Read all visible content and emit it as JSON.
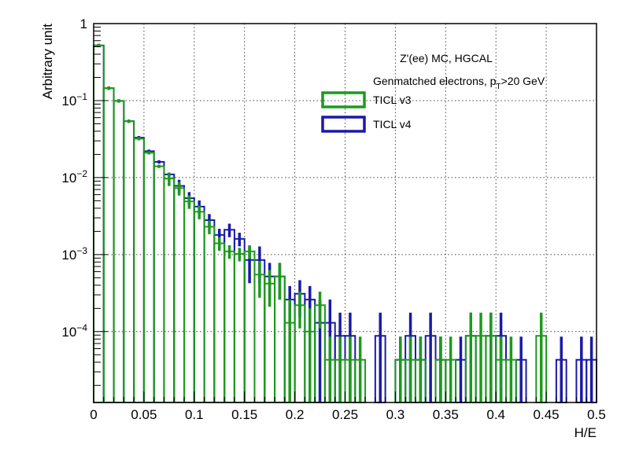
{
  "chart_data": {
    "type": "histogram",
    "xlabel": "H/E",
    "ylabel": "Arbitrary unit",
    "xlim": [
      0,
      0.5
    ],
    "ylim": [
      1.2e-05,
      1
    ],
    "yscale": "log",
    "grid": true,
    "grid_style": "dotted",
    "bin_width": 0.01,
    "x_tick_labels": [
      "0",
      "0.05",
      "0.1",
      "0.15",
      "0.2",
      "0.25",
      "0.3",
      "0.35",
      "0.4",
      "0.45",
      "0.5"
    ],
    "x_tick_values": [
      0,
      0.05,
      0.1,
      0.15,
      0.2,
      0.25,
      0.3,
      0.35,
      0.4,
      0.45,
      0.5
    ],
    "y_tick_values": [
      0.0001,
      0.001,
      0.01,
      0.1,
      1
    ],
    "y_tick_labels": [
      {
        "base": "10",
        "exp": "−4"
      },
      {
        "base": "10",
        "exp": "−3"
      },
      {
        "base": "10",
        "exp": "−2"
      },
      {
        "base": "10",
        "exp": "−1"
      },
      {
        "base": "1",
        "exp": ""
      }
    ],
    "annotations": [
      "Z'(ee) MC, HGCAL"
    ],
    "annotation_pt": {
      "pre": "Genmatched electrons, p",
      "sub": "T",
      "post": ">20 GeV"
    },
    "legend_position": "top-right",
    "series": [
      {
        "name": "TICL v3",
        "color": "#1c9a1c",
        "bins": [
          [
            0.0,
            0.52
          ],
          [
            0.01,
            0.145
          ],
          [
            0.02,
            0.099
          ],
          [
            0.03,
            0.054
          ],
          [
            0.04,
            0.032
          ],
          [
            0.05,
            0.021
          ],
          [
            0.06,
            0.014
          ],
          [
            0.07,
            0.0097
          ],
          [
            0.08,
            0.0073
          ],
          [
            0.09,
            0.0049
          ],
          [
            0.1,
            0.0036
          ],
          [
            0.11,
            0.0023
          ],
          [
            0.12,
            0.0014
          ],
          [
            0.13,
            0.0011
          ],
          [
            0.14,
            0.00102
          ],
          [
            0.15,
            0.0011
          ],
          [
            0.16,
            0.00055
          ],
          [
            0.17,
            0.00042
          ],
          [
            0.18,
            0.00052
          ],
          [
            0.19,
            0.00013
          ],
          [
            0.2,
            0.00022
          ],
          [
            0.21,
            0.0001
          ],
          [
            0.22,
            0.00022
          ],
          [
            0.23,
            4.3e-05
          ],
          [
            0.24,
            4.3e-05
          ],
          [
            0.25,
            4.3e-05
          ],
          [
            0.26,
            4.3e-05
          ],
          [
            0.3,
            4.3e-05
          ],
          [
            0.31,
            4.3e-05
          ],
          [
            0.32,
            4.3e-05
          ],
          [
            0.34,
            4.3e-05
          ],
          [
            0.35,
            4.3e-05
          ],
          [
            0.37,
            8.8e-05
          ],
          [
            0.38,
            8.8e-05
          ],
          [
            0.39,
            8.8e-05
          ],
          [
            0.4,
            4.3e-05
          ],
          [
            0.41,
            4.3e-05
          ],
          [
            0.44,
            8.8e-05
          ]
        ]
      },
      {
        "name": "TICL v4",
        "color": "#1a1aa6",
        "bins": [
          [
            0.0,
            0.52
          ],
          [
            0.01,
            0.145
          ],
          [
            0.02,
            0.099
          ],
          [
            0.03,
            0.054
          ],
          [
            0.04,
            0.033
          ],
          [
            0.05,
            0.022
          ],
          [
            0.06,
            0.016
          ],
          [
            0.07,
            0.011
          ],
          [
            0.08,
            0.0078
          ],
          [
            0.09,
            0.0054
          ],
          [
            0.1,
            0.0042
          ],
          [
            0.11,
            0.0028
          ],
          [
            0.12,
            0.0018
          ],
          [
            0.13,
            0.0021
          ],
          [
            0.14,
            0.0016
          ],
          [
            0.15,
            0.00085
          ],
          [
            0.16,
            0.00085
          ],
          [
            0.17,
            0.00052
          ],
          [
            0.18,
            0.00052
          ],
          [
            0.19,
            0.00026
          ],
          [
            0.2,
            0.00031
          ],
          [
            0.21,
            0.00026
          ],
          [
            0.22,
            0.00013
          ],
          [
            0.23,
            0.00013
          ],
          [
            0.24,
            8.8e-05
          ],
          [
            0.25,
            8.8e-05
          ],
          [
            0.28,
            8.8e-05
          ],
          [
            0.3,
            4.3e-05
          ],
          [
            0.31,
            8.8e-05
          ],
          [
            0.32,
            4.3e-05
          ],
          [
            0.33,
            8.8e-05
          ],
          [
            0.34,
            4.3e-05
          ],
          [
            0.36,
            4.3e-05
          ],
          [
            0.37,
            8.8e-05
          ],
          [
            0.39,
            8.8e-05
          ],
          [
            0.4,
            8.8e-05
          ],
          [
            0.42,
            4.3e-05
          ],
          [
            0.46,
            4.3e-05
          ],
          [
            0.48,
            4.3e-05
          ],
          [
            0.49,
            4.3e-05
          ]
        ]
      }
    ]
  }
}
